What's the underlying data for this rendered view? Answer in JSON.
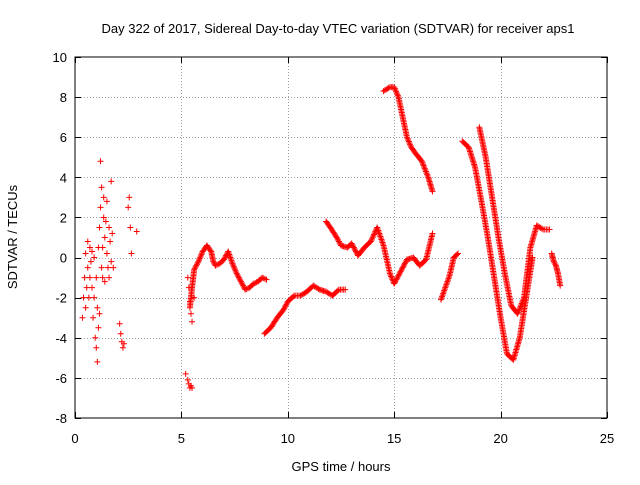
{
  "chart_data": {
    "type": "scatter",
    "title": "Day 322 of 2017, Sidereal Day-to-day VTEC variation (SDTVAR) for receiver aps1",
    "xlabel": "GPS time / hours",
    "ylabel": "SDTVAR / TECUs",
    "xlim": [
      0,
      25
    ],
    "ylim": [
      -8,
      10
    ],
    "xticks": [
      0,
      5,
      10,
      15,
      20,
      25
    ],
    "yticks": [
      -8,
      -6,
      -4,
      -2,
      0,
      2,
      4,
      6,
      8,
      10
    ],
    "grid": true,
    "marker": "plus",
    "color": "#ff0000",
    "segments": [
      {
        "name": "scatter-early",
        "x": [
          0.35,
          0.4,
          0.45,
          0.5,
          0.5,
          0.55,
          0.6,
          0.6,
          0.65,
          0.7,
          0.7,
          0.75,
          0.8,
          0.8,
          0.85,
          0.9,
          0.9,
          0.95,
          1.0,
          1.0,
          1.05,
          1.05,
          1.1,
          1.1,
          1.15,
          1.15,
          1.2,
          1.2,
          1.25,
          1.25,
          1.3,
          1.3,
          1.35,
          1.35,
          1.4,
          1.4,
          1.45,
          1.5,
          1.5,
          1.55,
          1.6,
          1.6,
          1.65,
          1.7,
          1.7,
          1.75,
          1.8
        ],
        "y": [
          -3.0,
          -2.0,
          -1.0,
          -2.5,
          0.2,
          -1.5,
          -0.5,
          0.8,
          -2.0,
          -1.0,
          0.5,
          -0.2,
          -1.5,
          0.3,
          -3.0,
          -2.0,
          0.0,
          -4.0,
          -4.5,
          -1.0,
          -5.2,
          -2.5,
          -3.5,
          0.5,
          -2.8,
          1.5,
          2.5,
          4.8,
          3.5,
          -0.5,
          0.5,
          -1.0,
          2.0,
          3.0,
          1.0,
          -1.2,
          1.8,
          0.2,
          2.8,
          -0.5,
          1.5,
          -1.0,
          0.8,
          3.8,
          -0.2,
          1.2,
          -0.5
        ]
      },
      {
        "name": "cluster-2h",
        "x": [
          2.1,
          2.15,
          2.2,
          2.25,
          2.3,
          2.5,
          2.55,
          2.6,
          2.65,
          2.9
        ],
        "y": [
          -3.3,
          -3.8,
          -4.2,
          -4.5,
          -4.3,
          2.5,
          3.0,
          1.5,
          0.2,
          1.3
        ]
      },
      {
        "name": "cluster-5h",
        "x": [
          5.2,
          5.3,
          5.35,
          5.4,
          5.45,
          5.5,
          5.3,
          5.35,
          5.4,
          5.45,
          5.5,
          5.6
        ],
        "y": [
          -5.8,
          -6.1,
          -6.3,
          -6.5,
          -6.4,
          -6.5,
          -1.0,
          -1.5,
          -2.2,
          -2.8,
          -3.2,
          -2.0
        ]
      },
      {
        "name": "curve-5h5-8h",
        "x": [
          5.4,
          5.5,
          5.6,
          5.8,
          6.0,
          6.2,
          6.4,
          6.5,
          6.6,
          6.8,
          7.0,
          7.2,
          7.4,
          7.6,
          7.8,
          8.0,
          8.2,
          8.4,
          8.6,
          8.8,
          9.0
        ],
        "y": [
          -2.5,
          -1.5,
          -0.6,
          -0.2,
          0.3,
          0.6,
          0.3,
          -0.2,
          -0.4,
          -0.3,
          -0.1,
          0.3,
          -0.3,
          -0.8,
          -1.2,
          -1.6,
          -1.5,
          -1.3,
          -1.2,
          -1.0,
          -1.1
        ]
      },
      {
        "name": "ramp-9h-12h",
        "x": [
          8.9,
          9.2,
          9.5,
          9.8,
          10.0,
          10.3,
          10.6,
          10.9,
          11.2,
          11.5,
          11.8,
          12.1,
          12.4,
          12.7
        ],
        "y": [
          -3.8,
          -3.5,
          -3.0,
          -2.6,
          -2.2,
          -1.9,
          -1.9,
          -1.7,
          -1.4,
          -1.6,
          -1.7,
          -1.9,
          -1.6,
          -1.6
        ]
      },
      {
        "name": "wiggle-12h-17h",
        "x": [
          11.8,
          12.0,
          12.3,
          12.5,
          12.8,
          13.0,
          13.3,
          13.6,
          13.9,
          14.2,
          14.5,
          14.8,
          15.0,
          15.3,
          15.6,
          15.9,
          16.2,
          16.5,
          16.8
        ],
        "y": [
          1.8,
          1.5,
          1.0,
          0.6,
          0.5,
          0.7,
          0.1,
          0.5,
          0.8,
          1.5,
          0.6,
          -0.8,
          -1.3,
          -0.7,
          -0.1,
          0.0,
          -0.4,
          -0.1,
          1.2
        ]
      },
      {
        "name": "descent-15h-17h",
        "x": [
          14.5,
          14.8,
          15.0,
          15.2,
          15.4,
          15.6,
          15.8,
          16.0,
          16.3,
          16.6,
          16.8
        ],
        "y": [
          8.3,
          8.5,
          8.5,
          8.0,
          7.0,
          6.0,
          5.5,
          5.2,
          4.8,
          4.0,
          3.3
        ]
      },
      {
        "name": "bump-17h-18h",
        "x": [
          17.2,
          17.4,
          17.6,
          17.8,
          18.0
        ],
        "y": [
          -2.1,
          -1.5,
          -0.9,
          0.0,
          0.2
        ]
      },
      {
        "name": "big-v-outer",
        "x": [
          18.2,
          18.5,
          18.8,
          19.1,
          19.4,
          19.7,
          20.0,
          20.3,
          20.6,
          20.9,
          21.2,
          21.5
        ],
        "y": [
          5.8,
          5.5,
          4.5,
          2.8,
          1.0,
          -1.0,
          -3.0,
          -4.8,
          -5.1,
          -4.0,
          -2.0,
          0.0
        ]
      },
      {
        "name": "big-v-inner",
        "x": [
          19.0,
          19.3,
          19.6,
          19.9,
          20.2,
          20.5,
          20.8,
          21.1,
          21.4,
          21.7,
          22.0,
          22.3
        ],
        "y": [
          6.5,
          5.0,
          3.0,
          1.0,
          -0.8,
          -2.4,
          -2.8,
          -2.0,
          0.5,
          1.6,
          1.4,
          1.4
        ]
      },
      {
        "name": "tail-22h",
        "x": [
          22.4,
          22.5,
          22.6,
          22.7,
          22.8
        ],
        "y": [
          0.2,
          -0.2,
          -0.4,
          -0.8,
          -1.4
        ]
      }
    ]
  }
}
